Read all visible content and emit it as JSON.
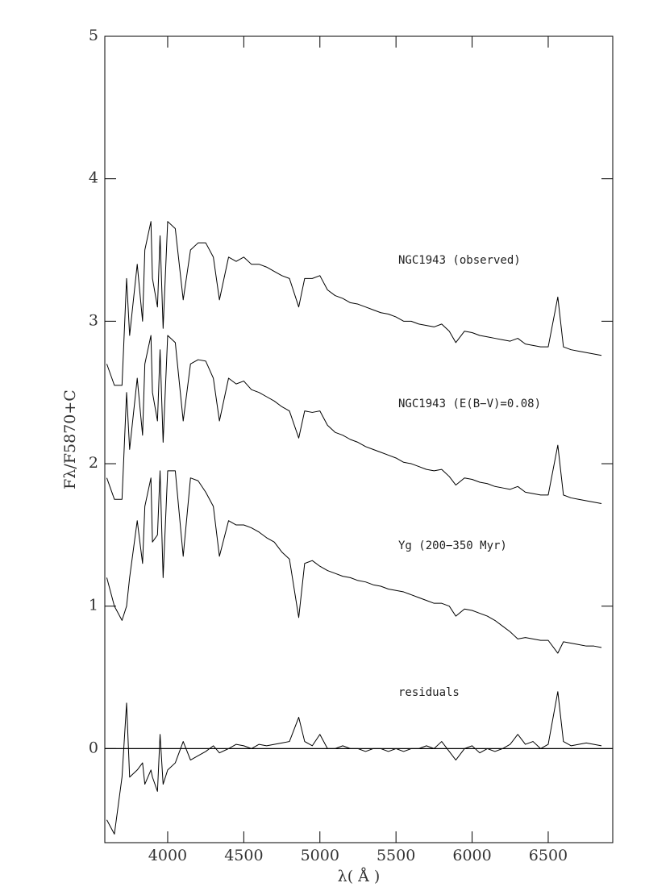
{
  "chart_data": {
    "type": "line",
    "x_label": "λ( Å )",
    "y_label": "Fλ/F5870+C",
    "x": [
      3600,
      3650,
      3700,
      3730,
      3750,
      3800,
      3835,
      3850,
      3890,
      3900,
      3933,
      3950,
      3970,
      4000,
      4050,
      4102,
      4150,
      4200,
      4250,
      4300,
      4340,
      4400,
      4450,
      4500,
      4550,
      4600,
      4650,
      4700,
      4750,
      4800,
      4861,
      4900,
      4950,
      5000,
      5050,
      5100,
      5150,
      5200,
      5250,
      5300,
      5350,
      5400,
      5450,
      5500,
      5550,
      5600,
      5650,
      5700,
      5750,
      5800,
      5850,
      5893,
      5950,
      6000,
      6050,
      6100,
      6150,
      6200,
      6250,
      6300,
      6350,
      6400,
      6450,
      6500,
      6563,
      6600,
      6650,
      6700,
      6750,
      6800,
      6850
    ],
    "series": [
      {
        "name": "NGC1943 (observed)",
        "color": "#000000",
        "values": [
          2.7,
          2.55,
          2.55,
          3.3,
          2.9,
          3.4,
          3.0,
          3.5,
          3.7,
          3.3,
          3.1,
          3.6,
          2.95,
          3.7,
          3.65,
          3.15,
          3.5,
          3.55,
          3.55,
          3.45,
          3.15,
          3.45,
          3.42,
          3.45,
          3.4,
          3.4,
          3.38,
          3.35,
          3.32,
          3.3,
          3.1,
          3.3,
          3.3,
          3.32,
          3.22,
          3.18,
          3.16,
          3.13,
          3.12,
          3.1,
          3.08,
          3.06,
          3.05,
          3.03,
          3.0,
          3.0,
          2.98,
          2.97,
          2.96,
          2.98,
          2.93,
          2.85,
          2.93,
          2.92,
          2.9,
          2.89,
          2.88,
          2.87,
          2.86,
          2.88,
          2.84,
          2.83,
          2.82,
          2.82,
          3.17,
          2.82,
          2.8,
          2.79,
          2.78,
          2.77,
          2.76
        ]
      },
      {
        "name": "NGC1943 (E(B−V)=0.08)",
        "color": "#000000",
        "values": [
          1.9,
          1.75,
          1.75,
          2.5,
          2.1,
          2.6,
          2.2,
          2.7,
          2.9,
          2.5,
          2.3,
          2.8,
          2.15,
          2.9,
          2.85,
          2.3,
          2.7,
          2.73,
          2.72,
          2.6,
          2.3,
          2.6,
          2.56,
          2.58,
          2.52,
          2.5,
          2.47,
          2.44,
          2.4,
          2.37,
          2.18,
          2.37,
          2.36,
          2.37,
          2.27,
          2.22,
          2.2,
          2.17,
          2.15,
          2.12,
          2.1,
          2.08,
          2.06,
          2.04,
          2.01,
          2.0,
          1.98,
          1.96,
          1.95,
          1.96,
          1.91,
          1.85,
          1.9,
          1.89,
          1.87,
          1.86,
          1.84,
          1.83,
          1.82,
          1.84,
          1.8,
          1.79,
          1.78,
          1.78,
          2.13,
          1.78,
          1.76,
          1.75,
          1.74,
          1.73,
          1.72
        ]
      },
      {
        "name": "Yg (200−350 Myr)",
        "color": "#000000",
        "values": [
          1.2,
          1.0,
          0.9,
          1.0,
          1.2,
          1.6,
          1.3,
          1.7,
          1.9,
          1.45,
          1.5,
          1.95,
          1.2,
          1.95,
          1.95,
          1.35,
          1.9,
          1.88,
          1.8,
          1.7,
          1.35,
          1.6,
          1.57,
          1.57,
          1.55,
          1.52,
          1.48,
          1.45,
          1.38,
          1.33,
          0.92,
          1.3,
          1.32,
          1.28,
          1.25,
          1.23,
          1.21,
          1.2,
          1.18,
          1.17,
          1.15,
          1.14,
          1.12,
          1.11,
          1.1,
          1.08,
          1.06,
          1.04,
          1.02,
          1.02,
          1.0,
          0.93,
          0.98,
          0.97,
          0.95,
          0.93,
          0.9,
          0.86,
          0.82,
          0.77,
          0.78,
          0.77,
          0.76,
          0.76,
          0.67,
          0.75,
          0.74,
          0.73,
          0.72,
          0.72,
          0.71
        ]
      },
      {
        "name": "residuals",
        "color": "#000000",
        "values": [
          -0.5,
          -0.6,
          -0.2,
          0.32,
          -0.2,
          -0.15,
          -0.1,
          -0.25,
          -0.15,
          -0.2,
          -0.3,
          0.1,
          -0.25,
          -0.15,
          -0.1,
          0.05,
          -0.08,
          -0.05,
          -0.02,
          0.02,
          -0.03,
          0.0,
          0.03,
          0.02,
          0.0,
          0.03,
          0.02,
          0.03,
          0.04,
          0.05,
          0.22,
          0.05,
          0.02,
          0.1,
          0.0,
          0.0,
          0.02,
          0.0,
          0.0,
          -0.02,
          0.0,
          0.0,
          -0.02,
          0.0,
          -0.02,
          0.0,
          0.0,
          0.02,
          0.0,
          0.05,
          -0.02,
          -0.08,
          0.0,
          0.02,
          -0.03,
          0.0,
          -0.02,
          0.0,
          0.03,
          0.1,
          0.03,
          0.05,
          0.0,
          0.03,
          0.4,
          0.05,
          0.02,
          0.03,
          0.04,
          0.03,
          0.02
        ]
      }
    ],
    "xlim": [
      3587,
      6924
    ],
    "ylim": [
      -0.66,
      5
    ],
    "xticks": [
      4000,
      4500,
      5000,
      5500,
      6000,
      6500
    ],
    "yticks": [
      0,
      1,
      2,
      3,
      4,
      5
    ],
    "zero_line": true,
    "grid": false
  }
}
